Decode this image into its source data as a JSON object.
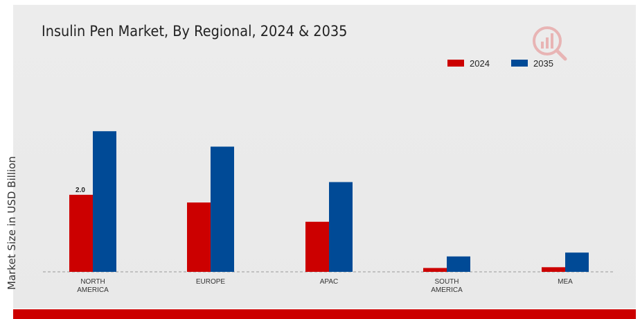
{
  "chart_data": {
    "type": "bar",
    "title": "Insulin Pen Market, By Regional, 2024 & 2035",
    "ylabel": "Market Size in USD Billion",
    "xlabel": "",
    "categories": [
      "NORTH AMERICA",
      "EUROPE",
      "APAC",
      "SOUTH AMERICA",
      "MEA"
    ],
    "category_lines": [
      [
        "NORTH",
        "AMERICA"
      ],
      [
        "EUROPE"
      ],
      [
        "APAC"
      ],
      [
        "SOUTH",
        "AMERICA"
      ],
      [
        "MEA"
      ]
    ],
    "series": [
      {
        "name": "2024",
        "color": "#cc0000",
        "values": [
          2.0,
          1.8,
          1.3,
          0.1,
          0.12
        ]
      },
      {
        "name": "2035",
        "color": "#004a96",
        "values": [
          3.65,
          3.25,
          2.33,
          0.4,
          0.5
        ]
      }
    ],
    "data_labels": [
      {
        "series": 0,
        "index": 0,
        "text": "2.0"
      }
    ],
    "ylim": [
      0,
      4.5
    ],
    "grid": false,
    "legend": "top-right"
  },
  "colors": {
    "accent": "#cc0000",
    "panel": "#ebebeb",
    "baseline": "#999999"
  },
  "icons": {
    "logo": "market-research-logo-icon"
  }
}
